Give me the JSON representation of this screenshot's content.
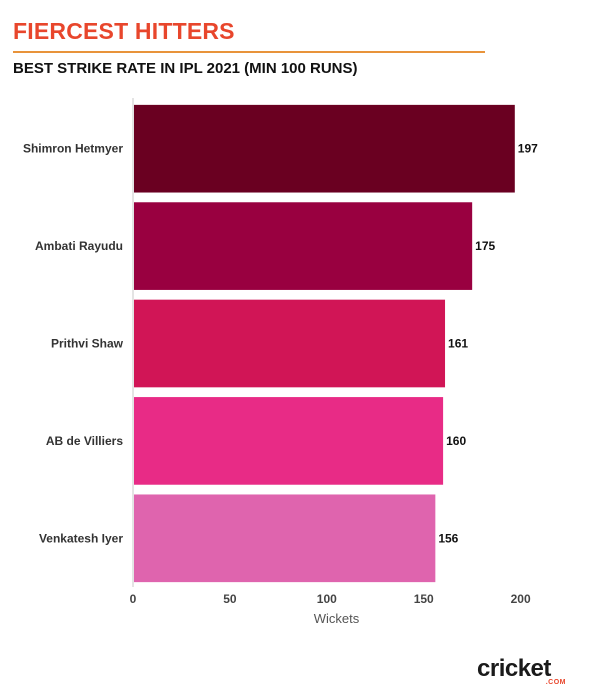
{
  "header": {
    "title": "FIERCEST HITTERS",
    "subtitle": "BEST STRIKE RATE IN IPL 2021 (MIN 100 RUNS)"
  },
  "chart_data": {
    "type": "bar",
    "orientation": "horizontal",
    "categories": [
      "Shimron Hetmyer",
      "Ambati Rayudu",
      "Prithvi Shaw",
      "AB de Villiers",
      "Venkatesh Iyer"
    ],
    "values": [
      197,
      175,
      161,
      160,
      156
    ],
    "data_labels": [
      "197",
      "175",
      "161",
      "160",
      "156"
    ],
    "bar_colors": [
      "#6a0021",
      "#990040",
      "#d11556",
      "#e82b86",
      "#df64ae"
    ],
    "xlabel": "Wickets",
    "ylabel": "",
    "xlim": [
      0,
      210
    ],
    "xticks": [
      0,
      50,
      100,
      150,
      200
    ],
    "grid": false,
    "legend": "none"
  },
  "logo": {
    "word": "cricket",
    "sub": ".COM",
    "colors": {
      "text": "#1a1a1a",
      "accent": "#e8462c"
    }
  },
  "colors": {
    "title": "#e8462c",
    "rule": "#e8933a"
  }
}
